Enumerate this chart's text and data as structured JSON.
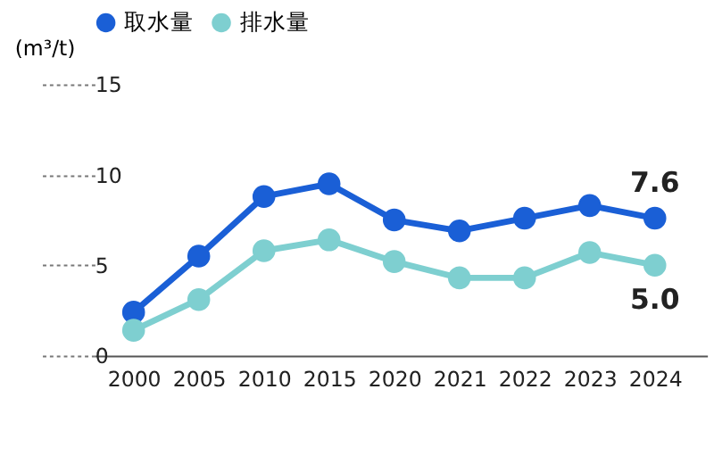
{
  "chart_data": {
    "type": "line",
    "ylabel": "(m³/t)",
    "categories": [
      "2000",
      "2005",
      "2010",
      "2015",
      "2020",
      "2021",
      "2022",
      "2023",
      "2024"
    ],
    "series": [
      {
        "name": "取水量",
        "color": "#1a5fd6",
        "values": [
          2.4,
          5.5,
          8.8,
          9.5,
          7.5,
          6.9,
          7.6,
          8.3,
          7.6
        ],
        "value_labels": [
          null,
          null,
          null,
          null,
          null,
          null,
          null,
          null,
          "7.6"
        ]
      },
      {
        "name": "排水量",
        "color": "#7ecfd0",
        "values": [
          1.4,
          3.1,
          5.8,
          6.4,
          5.2,
          4.3,
          4.3,
          5.7,
          5.0
        ],
        "value_labels": [
          null,
          null,
          null,
          null,
          null,
          null,
          null,
          null,
          "5.0"
        ]
      }
    ],
    "ylim": [
      0,
      15
    ],
    "yticks": [
      0,
      5,
      10,
      15
    ],
    "grid": false,
    "legend": "top left",
    "marker": "circle",
    "line_style": "solid"
  }
}
